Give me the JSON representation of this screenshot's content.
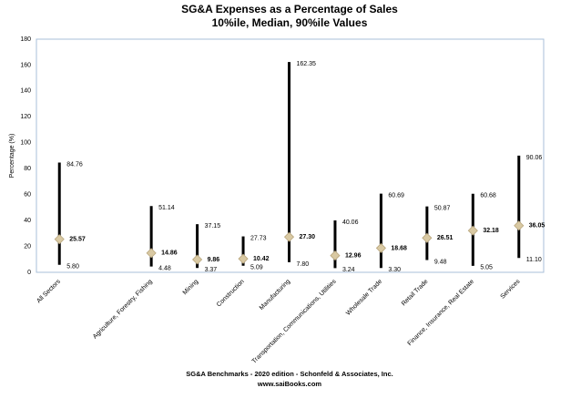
{
  "chart_data": {
    "type": "range",
    "title": "SG&A Expenses as a Percentage of Sales",
    "subtitle": "10%ile, Median, 90%ile Values",
    "y_label": "Percentage (%)",
    "footer": [
      "SG&A Benchmarks - 2020 edition - Schonfeld & Associates, Inc.",
      "www.saiBooks.com"
    ],
    "categories": [
      "All Sectors",
      null,
      "Agriculture, Forestry, Fishing",
      "Mining",
      "Construction",
      "Manufacturing",
      "Transportation, Communications, Utilities",
      "Wholesale Trade",
      "Retail Trade",
      "Finance, Insurance, Real Estate",
      "Services"
    ],
    "series": [
      {
        "values": [
          5.8,
          null,
          4.48,
          3.37,
          5.09,
          7.8,
          3.24,
          3.3,
          9.48,
          5.05,
          11.1
        ],
        "value_labels": [
          "5.80",
          null,
          "4.48",
          "3.37",
          "5.09",
          "7.80",
          "3.24",
          "3.30",
          "9.48",
          "5.05",
          "11.10"
        ],
        "color": "#000000"
      },
      {
        "values": [
          25.57,
          null,
          14.86,
          9.86,
          10.42,
          27.3,
          12.96,
          18.68,
          26.51,
          32.18,
          36.05
        ],
        "value_labels": [
          "25.57",
          null,
          "14.86",
          "9.86",
          "10.42",
          "27.30",
          "12.96",
          "18.68",
          "26.51",
          "32.18",
          "36.05"
        ],
        "color": "#d9c9a3"
      },
      {
        "values": [
          84.76,
          null,
          51.14,
          37.15,
          27.73,
          162.35,
          40.06,
          60.69,
          50.87,
          60.68,
          90.06
        ],
        "value_labels": [
          "84.76",
          null,
          "51.14",
          "37.15",
          "27.73",
          "162.35",
          "40.06",
          "60.69",
          "50.87",
          "60.68",
          "90.06"
        ],
        "color": "#000000"
      }
    ],
    "ylim": [
      0,
      180
    ],
    "yticks": [
      0,
      20,
      40,
      60,
      80,
      100,
      120,
      140,
      160,
      180
    ],
    "grid": false
  }
}
